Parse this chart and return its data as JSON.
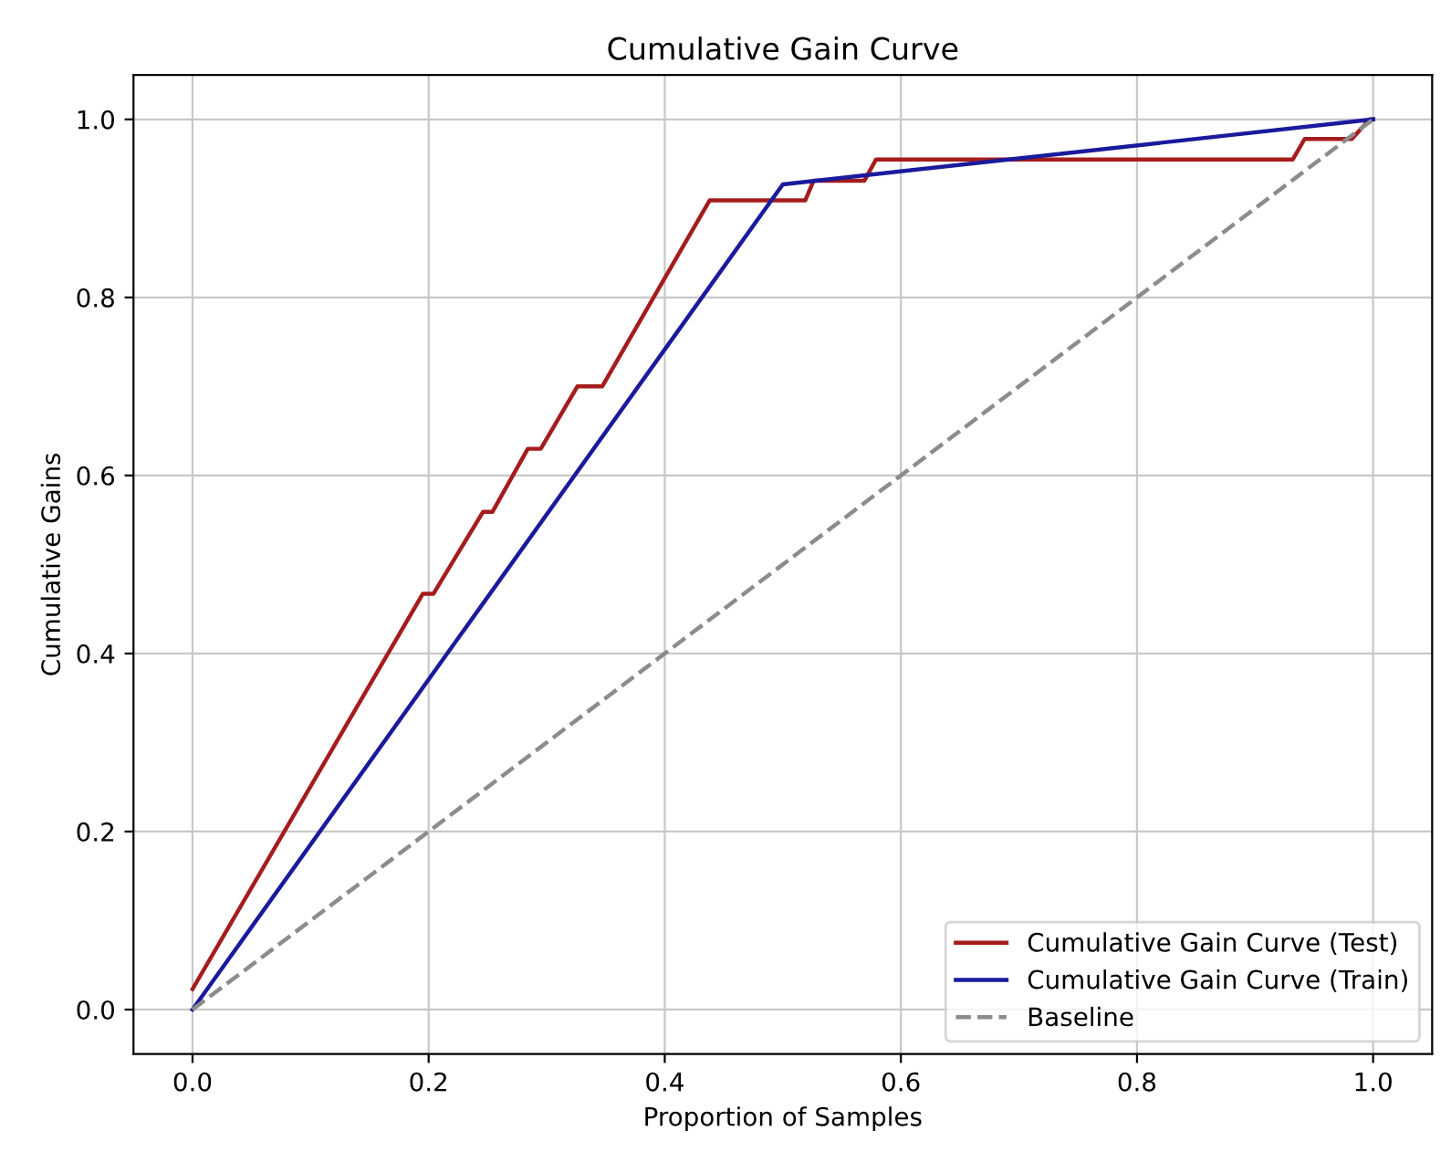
{
  "chart_data": {
    "type": "line",
    "title": "Cumulative Gain Curve",
    "xlabel": "Proportion of Samples",
    "ylabel": "Cumulative Gains",
    "xlim": [
      -0.05,
      1.05
    ],
    "ylim": [
      -0.05,
      1.05
    ],
    "xticks": [
      {
        "value": 0,
        "label": "0.0"
      },
      0.2,
      0.4,
      0.6,
      0.8,
      {
        "value": 1,
        "label": "1.0"
      }
    ],
    "yticks": [
      {
        "value": 0,
        "label": "0.0"
      },
      0.2,
      0.4,
      0.6,
      0.8,
      {
        "value": 1,
        "label": "1.0"
      }
    ],
    "grid": true,
    "legend": "bottom right",
    "series": [
      {
        "name": "Cumulative Gain Curve (Test)",
        "color": "#a51c1c",
        "line_style": "solid",
        "x": [
          0,
          0.195,
          0.204,
          0.246,
          0.254,
          0.284,
          0.295,
          0.326,
          0.347,
          0.438,
          0.519,
          0.526,
          0.569,
          0.579,
          0.932,
          0.942,
          0.982,
          0.997,
          1.0
        ],
        "values": [
          0.023,
          0.467,
          0.467,
          0.559,
          0.559,
          0.63,
          0.63,
          0.7,
          0.7,
          0.909,
          0.909,
          0.931,
          0.931,
          0.955,
          0.955,
          0.978,
          0.978,
          1.0,
          1.0
        ]
      },
      {
        "name": "Cumulative Gain Curve (Train)",
        "color": "#1a1a9c",
        "line_style": "solid",
        "x": [
          0,
          0.5,
          1.0
        ],
        "values": [
          0,
          0.927,
          1.0
        ]
      },
      {
        "name": "Baseline",
        "color": "#8c8c8c",
        "line_style": "dashed",
        "x": [
          0,
          1.0
        ],
        "values": [
          0,
          1.0
        ]
      }
    ]
  }
}
